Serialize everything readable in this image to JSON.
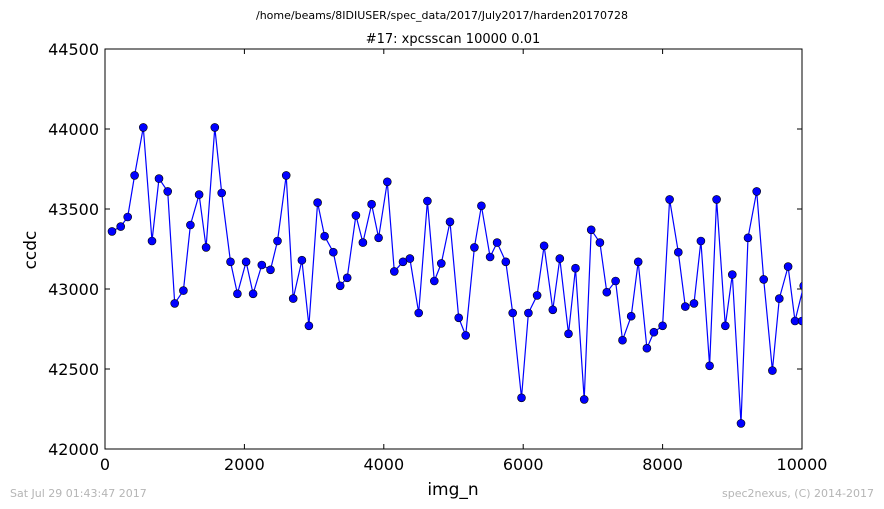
{
  "supertitle": "/home/beams/8IDIUSER/spec_data/2017/July2017/harden20170728",
  "footer": {
    "left": "Sat Jul 29 01:43:47 2017",
    "right": "spec2nexus, (C) 2014-2017"
  },
  "colors": {
    "series": "#0000ff",
    "axes": "#000000",
    "footer_text": "#b5b5b5"
  },
  "chart_data": {
    "type": "line",
    "title": "#17: xpcsscan 10000 0.01",
    "xlabel": "img_n",
    "ylabel": "ccdc",
    "xlim": [
      0,
      10000
    ],
    "ylim": [
      42000,
      44500
    ],
    "xticks": [
      0,
      2000,
      4000,
      6000,
      8000,
      10000
    ],
    "yticks": [
      42000,
      42500,
      43000,
      43500,
      44000,
      44500
    ],
    "grid": false,
    "marker": "circle",
    "series": [
      {
        "x": [
          100,
          225,
          325,
          425,
          550,
          675,
          775,
          900,
          1000,
          1125,
          1225,
          1350,
          1450,
          1575,
          1675,
          1800,
          1900,
          2025,
          2125,
          2250,
          2375,
          2475,
          2600,
          2700,
          2825,
          2925,
          3050,
          3150,
          3275,
          3375,
          3475,
          3600,
          3700,
          3825,
          3925,
          4050,
          4150,
          4275,
          4375,
          4500,
          4625,
          4725,
          4825,
          4950,
          5075,
          5175,
          5300,
          5400,
          5525,
          5625,
          5750,
          5850,
          5975,
          6075,
          6200,
          6300,
          6425,
          6525,
          6650,
          6750,
          6875,
          6975,
          7100,
          7200,
          7325,
          7425,
          7550,
          7650,
          7775,
          7875,
          8000,
          8100,
          8225,
          8325,
          8450,
          8550,
          8675,
          8775,
          8900,
          9000,
          9125,
          9225,
          9350,
          9450,
          9575,
          9675,
          9800,
          9900,
          10025,
          10000
        ],
        "y": [
          43360,
          43390,
          43450,
          43710,
          44010,
          43300,
          43690,
          43610,
          42910,
          42990,
          43400,
          43590,
          43260,
          44010,
          43600,
          43170,
          42970,
          43170,
          42970,
          43150,
          43120,
          43300,
          43710,
          42940,
          43180,
          42770,
          43540,
          43330,
          43230,
          43020,
          43070,
          43460,
          43290,
          43530,
          43320,
          43670,
          43110,
          43170,
          43190,
          42850,
          43550,
          43050,
          43160,
          43420,
          42820,
          42710,
          43260,
          43520,
          43200,
          43290,
          43170,
          42850,
          42320,
          42850,
          42960,
          43270,
          42870,
          43190,
          42720,
          43130,
          42310,
          43370,
          43290,
          42980,
          43050,
          42680,
          42830,
          43170,
          42630,
          42730,
          42770,
          43560,
          43230,
          42890,
          42910,
          43300,
          42520,
          43560,
          42770,
          43090,
          42160,
          43320,
          43610,
          43060,
          42490,
          42940,
          43140,
          42800,
          43020,
          42800
        ]
      }
    ]
  }
}
